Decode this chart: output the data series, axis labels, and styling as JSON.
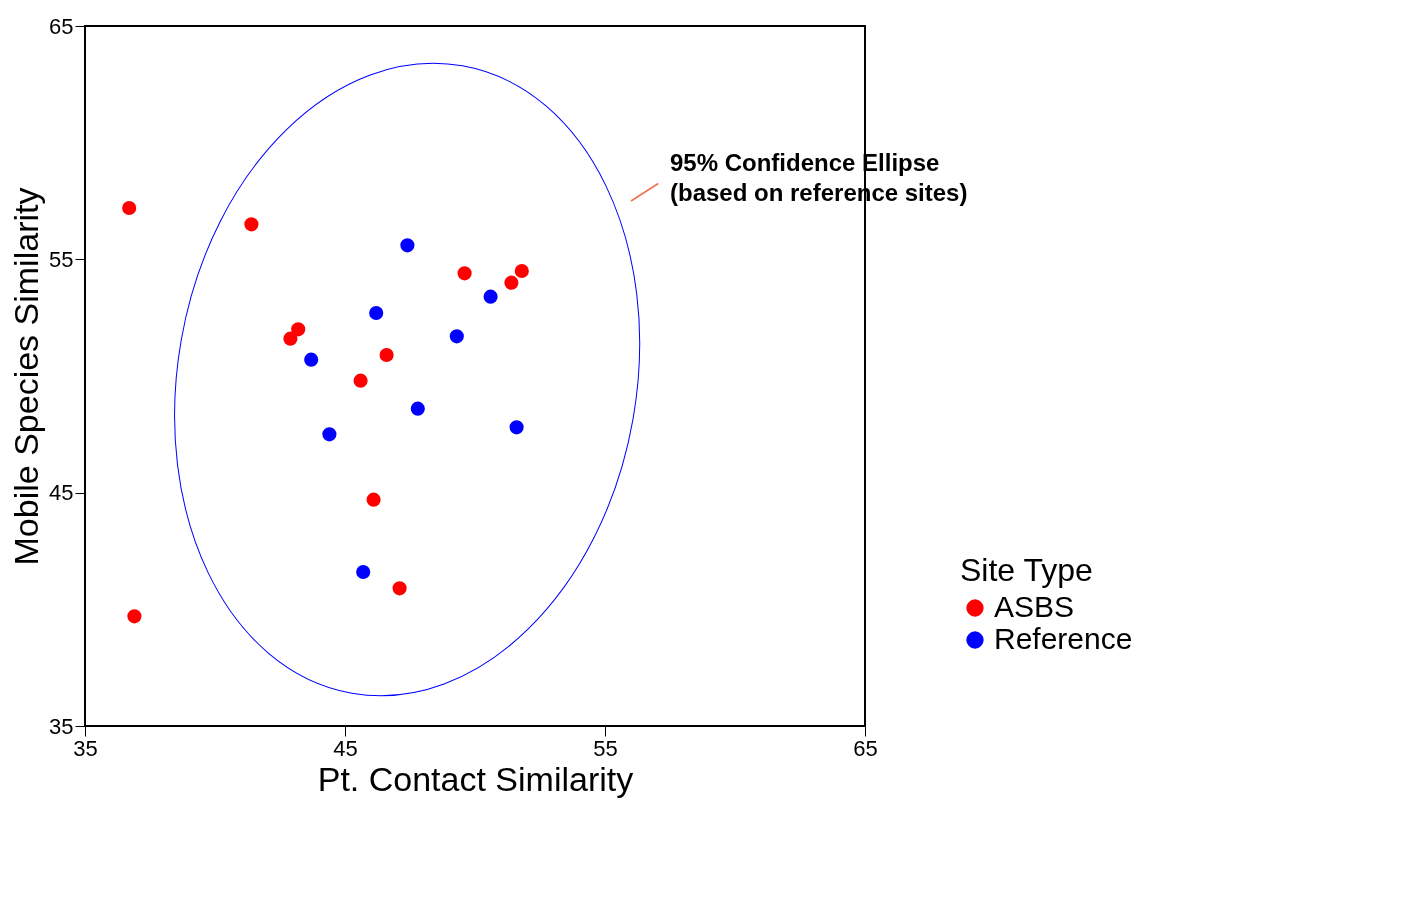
{
  "chart_data": {
    "type": "scatter",
    "xlabel": "Pt. Contact Similarity",
    "ylabel": "Mobile Species Similarity",
    "xlim": [
      35,
      65
    ],
    "ylim": [
      35,
      65
    ],
    "xticks": [
      35,
      45,
      55,
      65
    ],
    "yticks": [
      35,
      45,
      55,
      65
    ],
    "grid": false,
    "legend": "bottom right",
    "legend_title": "Site Type",
    "marker": "circle",
    "series": [
      {
        "name": "ASBS",
        "color": "#ff0000",
        "x": [
          36.7,
          41.4,
          43.2,
          42.9,
          46.6,
          45.6,
          49.6,
          51.4,
          51.8,
          46.1,
          47.1,
          36.9
        ],
        "values": [
          57.2,
          56.5,
          52.0,
          51.6,
          50.9,
          49.8,
          54.4,
          54.0,
          54.5,
          44.7,
          40.9,
          39.7
        ]
      },
      {
        "name": "Reference",
        "color": "#0000ff",
        "x": [
          47.4,
          50.6,
          46.2,
          49.3,
          43.7,
          47.8,
          51.6,
          44.4,
          45.7
        ],
        "values": [
          55.6,
          53.4,
          52.7,
          51.7,
          50.7,
          48.6,
          47.8,
          47.5,
          41.6
        ]
      }
    ],
    "annotations": [
      "95% Confidence Ellipse\n(based on reference sites)"
    ]
  }
}
